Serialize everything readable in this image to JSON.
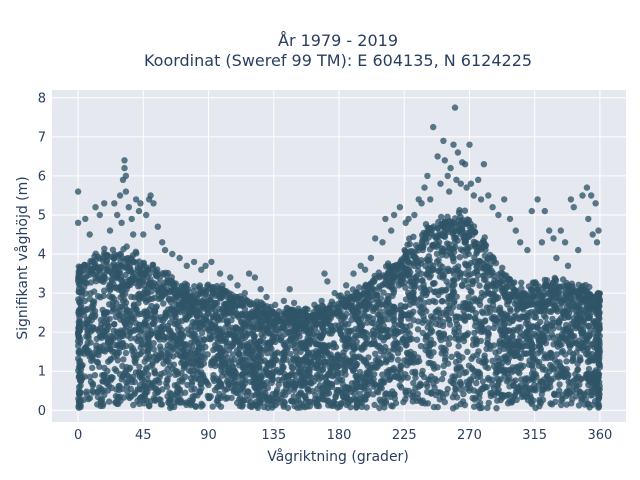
{
  "chart_data": {
    "type": "scatter",
    "title_line1": "År 1979 - 2019",
    "title_line2": "Koordinat (Sweref 99 TM): E 604135, N 6124225",
    "xlabel": "Vågriktning (grader)",
    "ylabel": "Signifikant våghöjd (m)",
    "xlim": [
      -18,
      378
    ],
    "ylim": [
      -0.3,
      8.2
    ],
    "xticks": [
      0,
      45,
      90,
      135,
      180,
      225,
      270,
      315,
      360
    ],
    "yticks": [
      0,
      1,
      2,
      3,
      4,
      5,
      6,
      7,
      8
    ],
    "grid": true,
    "marker_color": "#2f5468",
    "plot_background": "#e5e8ef",
    "envelope": {
      "x": [
        0,
        10,
        20,
        30,
        40,
        50,
        60,
        70,
        80,
        90,
        100,
        110,
        120,
        130,
        140,
        150,
        160,
        170,
        180,
        190,
        200,
        210,
        220,
        230,
        240,
        250,
        260,
        270,
        280,
        290,
        300,
        310,
        320,
        330,
        340,
        350,
        360
      ],
      "y_upper": [
        3.7,
        3.9,
        4.0,
        4.1,
        3.95,
        3.6,
        3.5,
        3.2,
        3.1,
        3.2,
        3.1,
        2.9,
        2.75,
        2.6,
        2.55,
        2.55,
        2.5,
        2.6,
        2.85,
        3.0,
        3.25,
        3.5,
        3.85,
        4.3,
        4.6,
        4.8,
        4.95,
        4.9,
        4.3,
        3.7,
        3.3,
        3.2,
        3.2,
        3.3,
        3.2,
        3.1,
        3.0
      ]
    },
    "outliers": [
      [
        0,
        4.8
      ],
      [
        0,
        5.6
      ],
      [
        5,
        4.9
      ],
      [
        8,
        4.5
      ],
      [
        12,
        5.2
      ],
      [
        15,
        5.0
      ],
      [
        18,
        5.3
      ],
      [
        22,
        4.6
      ],
      [
        25,
        5.3
      ],
      [
        27,
        5.0
      ],
      [
        29,
        5.5
      ],
      [
        30,
        4.8
      ],
      [
        31,
        5.9
      ],
      [
        32,
        6.4
      ],
      [
        32,
        6.2
      ],
      [
        33,
        6.0
      ],
      [
        33,
        5.6
      ],
      [
        35,
        5.2
      ],
      [
        37,
        4.9
      ],
      [
        38,
        4.5
      ],
      [
        40,
        5.4
      ],
      [
        42,
        5.1
      ],
      [
        43,
        5.3
      ],
      [
        45,
        4.5
      ],
      [
        47,
        5.0
      ],
      [
        49,
        5.4
      ],
      [
        50,
        5.5
      ],
      [
        52,
        5.3
      ],
      [
        55,
        4.7
      ],
      [
        58,
        4.3
      ],
      [
        60,
        4.1
      ],
      [
        65,
        4.0
      ],
      [
        70,
        3.9
      ],
      [
        75,
        3.7
      ],
      [
        80,
        3.8
      ],
      [
        85,
        3.6
      ],
      [
        88,
        3.7
      ],
      [
        92,
        3.8
      ],
      [
        98,
        3.5
      ],
      [
        105,
        3.4
      ],
      [
        110,
        3.2
      ],
      [
        115,
        3.0
      ],
      [
        118,
        3.5
      ],
      [
        122,
        3.4
      ],
      [
        126,
        3.1
      ],
      [
        130,
        2.9
      ],
      [
        136,
        2.7
      ],
      [
        142,
        2.8
      ],
      [
        146,
        3.1
      ],
      [
        149,
        2.75
      ],
      [
        152,
        2.6
      ],
      [
        157,
        2.6
      ],
      [
        163,
        2.7
      ],
      [
        168,
        2.8
      ],
      [
        170,
        3.5
      ],
      [
        172,
        3.3
      ],
      [
        177,
        3.0
      ],
      [
        185,
        3.2
      ],
      [
        190,
        3.5
      ],
      [
        195,
        3.7
      ],
      [
        198,
        3.6
      ],
      [
        202,
        3.9
      ],
      [
        205,
        4.4
      ],
      [
        210,
        4.3
      ],
      [
        212,
        4.9
      ],
      [
        216,
        4.6
      ],
      [
        218,
        5.0
      ],
      [
        222,
        5.2
      ],
      [
        226,
        4.8
      ],
      [
        228,
        4.9
      ],
      [
        232,
        5.0
      ],
      [
        235,
        5.4
      ],
      [
        237,
        5.3
      ],
      [
        239,
        5.7
      ],
      [
        241,
        6.0
      ],
      [
        243,
        5.4
      ],
      [
        245,
        7.25
      ],
      [
        248,
        6.5
      ],
      [
        250,
        5.8
      ],
      [
        252,
        6.9
      ],
      [
        253,
        6.4
      ],
      [
        255,
        6.0
      ],
      [
        256,
        5.6
      ],
      [
        257,
        6.2
      ],
      [
        259,
        6.8
      ],
      [
        260,
        7.75
      ],
      [
        261,
        5.9
      ],
      [
        262,
        6.6
      ],
      [
        264,
        5.8
      ],
      [
        265,
        6.35
      ],
      [
        267,
        6.3
      ],
      [
        268,
        5.7
      ],
      [
        270,
        6.8
      ],
      [
        271,
        5.8
      ],
      [
        273,
        5.5
      ],
      [
        276,
        5.9
      ],
      [
        278,
        5.4
      ],
      [
        280,
        6.3
      ],
      [
        283,
        5.5
      ],
      [
        286,
        5.2
      ],
      [
        290,
        5.0
      ],
      [
        294,
        5.4
      ],
      [
        298,
        4.9
      ],
      [
        302,
        4.6
      ],
      [
        305,
        4.3
      ],
      [
        310,
        4.1
      ],
      [
        313,
        5.1
      ],
      [
        317,
        5.4
      ],
      [
        320,
        4.3
      ],
      [
        322,
        5.1
      ],
      [
        325,
        4.6
      ],
      [
        328,
        4.4
      ],
      [
        330,
        3.9
      ],
      [
        333,
        4.6
      ],
      [
        336,
        4.3
      ],
      [
        338,
        3.7
      ],
      [
        340,
        5.4
      ],
      [
        342,
        5.2
      ],
      [
        345,
        4.1
      ],
      [
        348,
        5.5
      ],
      [
        351,
        5.7
      ],
      [
        352,
        4.9
      ],
      [
        354,
        5.5
      ],
      [
        355,
        4.5
      ],
      [
        357,
        5.3
      ],
      [
        358,
        4.3
      ],
      [
        359,
        4.6
      ]
    ]
  }
}
